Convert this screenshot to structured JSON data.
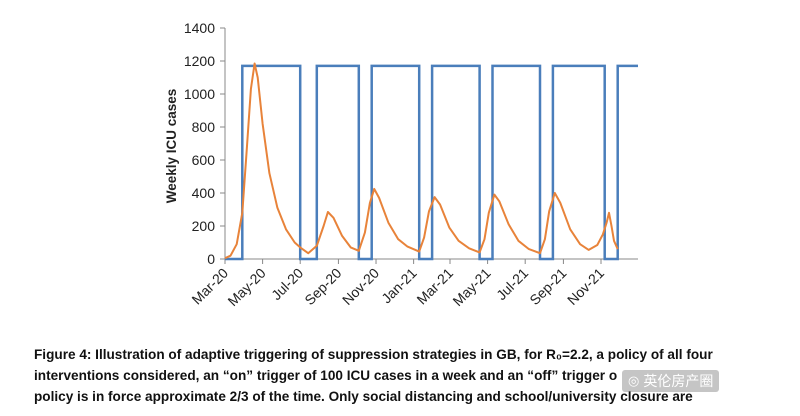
{
  "chart_data": {
    "type": "line",
    "ylabel": "Weekly ICU cases",
    "ylim": [
      0,
      1400
    ],
    "yticks": [
      0,
      200,
      400,
      600,
      800,
      1000,
      1200,
      1400
    ],
    "xlim": [
      "2020-03",
      "2021-12"
    ],
    "xtick_labels": [
      "Mar-20",
      "May-20",
      "Jul-20",
      "Sep-20",
      "Nov-20",
      "Jan-21",
      "Mar-21",
      "May-21",
      "Jul-21",
      "Sep-21",
      "Nov-21"
    ],
    "grid": false,
    "legend": "none",
    "series": [
      {
        "kind": "policy_trigger",
        "color": "#4a7ebb",
        "on_value": 1170,
        "off_value": 0,
        "points": [
          [
            "2020-03-01",
            0
          ],
          [
            "2020-03-29",
            0
          ],
          [
            "2020-03-29",
            1170
          ],
          [
            "2020-07-01",
            1170
          ],
          [
            "2020-07-01",
            0
          ],
          [
            "2020-07-28",
            0
          ],
          [
            "2020-07-28",
            1170
          ],
          [
            "2020-10-04",
            1170
          ],
          [
            "2020-10-04",
            0
          ],
          [
            "2020-10-25",
            0
          ],
          [
            "2020-10-25",
            1170
          ],
          [
            "2021-01-10",
            1170
          ],
          [
            "2021-01-10",
            0
          ],
          [
            "2021-01-31",
            0
          ],
          [
            "2021-01-31",
            1170
          ],
          [
            "2021-04-18",
            1170
          ],
          [
            "2021-04-18",
            0
          ],
          [
            "2021-05-09",
            0
          ],
          [
            "2021-05-09",
            1170
          ],
          [
            "2021-07-25",
            1170
          ],
          [
            "2021-07-25",
            0
          ],
          [
            "2021-08-15",
            0
          ],
          [
            "2021-08-15",
            1170
          ],
          [
            "2021-11-07",
            1170
          ],
          [
            "2021-11-07",
            0
          ],
          [
            "2021-11-28",
            0
          ],
          [
            "2021-11-28",
            1170
          ],
          [
            "2021-12-31",
            1170
          ]
        ]
      },
      {
        "kind": "icu_cases",
        "color": "#e8833a",
        "points": [
          [
            "2020-03-01",
            5
          ],
          [
            "2020-03-10",
            20
          ],
          [
            "2020-03-20",
            90
          ],
          [
            "2020-03-29",
            280
          ],
          [
            "2020-04-05",
            650
          ],
          [
            "2020-04-12",
            1030
          ],
          [
            "2020-04-18",
            1185
          ],
          [
            "2020-04-23",
            1100
          ],
          [
            "2020-05-01",
            820
          ],
          [
            "2020-05-12",
            520
          ],
          [
            "2020-05-25",
            310
          ],
          [
            "2020-06-08",
            180
          ],
          [
            "2020-06-22",
            100
          ],
          [
            "2020-07-01",
            70
          ],
          [
            "2020-07-14",
            35
          ],
          [
            "2020-07-28",
            80
          ],
          [
            "2020-08-08",
            200
          ],
          [
            "2020-08-15",
            285
          ],
          [
            "2020-08-24",
            250
          ],
          [
            "2020-09-07",
            140
          ],
          [
            "2020-09-21",
            70
          ],
          [
            "2020-10-04",
            50
          ],
          [
            "2020-10-14",
            160
          ],
          [
            "2020-10-22",
            340
          ],
          [
            "2020-10-29",
            425
          ],
          [
            "2020-11-06",
            370
          ],
          [
            "2020-11-21",
            220
          ],
          [
            "2020-12-07",
            120
          ],
          [
            "2020-12-22",
            75
          ],
          [
            "2021-01-10",
            45
          ],
          [
            "2021-01-18",
            130
          ],
          [
            "2021-01-26",
            290
          ],
          [
            "2021-02-04",
            375
          ],
          [
            "2021-02-13",
            330
          ],
          [
            "2021-02-28",
            190
          ],
          [
            "2021-03-15",
            110
          ],
          [
            "2021-04-01",
            65
          ],
          [
            "2021-04-18",
            40
          ],
          [
            "2021-04-26",
            120
          ],
          [
            "2021-05-03",
            280
          ],
          [
            "2021-05-12",
            390
          ],
          [
            "2021-05-20",
            350
          ],
          [
            "2021-06-04",
            210
          ],
          [
            "2021-06-20",
            110
          ],
          [
            "2021-07-07",
            60
          ],
          [
            "2021-07-25",
            35
          ],
          [
            "2021-08-02",
            120
          ],
          [
            "2021-08-09",
            290
          ],
          [
            "2021-08-18",
            400
          ],
          [
            "2021-08-27",
            340
          ],
          [
            "2021-09-12",
            180
          ],
          [
            "2021-09-28",
            90
          ],
          [
            "2021-10-12",
            55
          ],
          [
            "2021-10-26",
            85
          ],
          [
            "2021-11-04",
            150
          ],
          [
            "2021-11-10",
            220
          ],
          [
            "2021-11-14",
            280
          ],
          [
            "2021-11-18",
            200
          ],
          [
            "2021-11-22",
            110
          ],
          [
            "2021-11-28",
            60
          ]
        ]
      }
    ]
  },
  "caption": {
    "line1": "Figure 4: Illustration of adaptive triggering of suppression strategies in GB, for R₀=2.2, a policy of all four",
    "line2": "interventions considered, an “on” trigger of 100 ICU cases in a week and an “off” trigger o",
    "line3": "policy is in force approximate 2/3 of the time. Only social distancing and school/university closure are"
  },
  "watermark": {
    "text": "英伦房产圈",
    "icon": "wechat-icon"
  }
}
